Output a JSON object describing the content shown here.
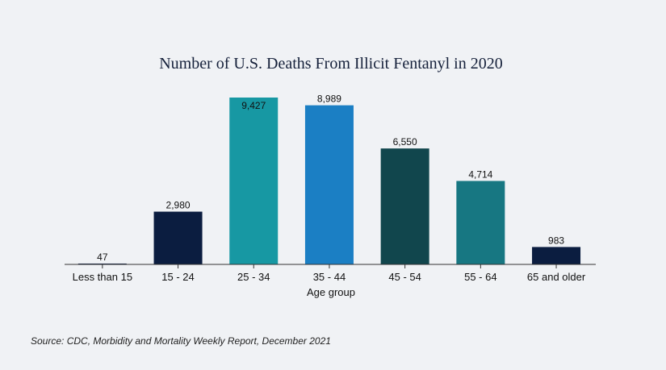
{
  "chart_data": {
    "type": "bar",
    "title": "Number of U.S. Deaths From Illicit Fentanyl in 2020",
    "xlabel": "Age group",
    "ylabel": "",
    "categories": [
      "Less than 15",
      "15 - 24",
      "25 - 34",
      "35 - 44",
      "45 - 54",
      "55 - 64",
      "65 and older"
    ],
    "values": [
      47,
      2980,
      9427,
      8989,
      6550,
      4714,
      983
    ],
    "value_labels": [
      "47",
      "2,980",
      "9,427",
      "8,989",
      "6,550",
      "4,714",
      "983"
    ],
    "colors": [
      "#0b1d40",
      "#0b1d40",
      "#1798a3",
      "#1b7fc4",
      "#11464d",
      "#177782",
      "#0b1d40"
    ],
    "ylim": [
      0,
      9427
    ],
    "grid": false,
    "legend": "none"
  },
  "footer": {
    "source": "Source: CDC, Morbidity and Mortality Weekly Report, December 2021"
  }
}
